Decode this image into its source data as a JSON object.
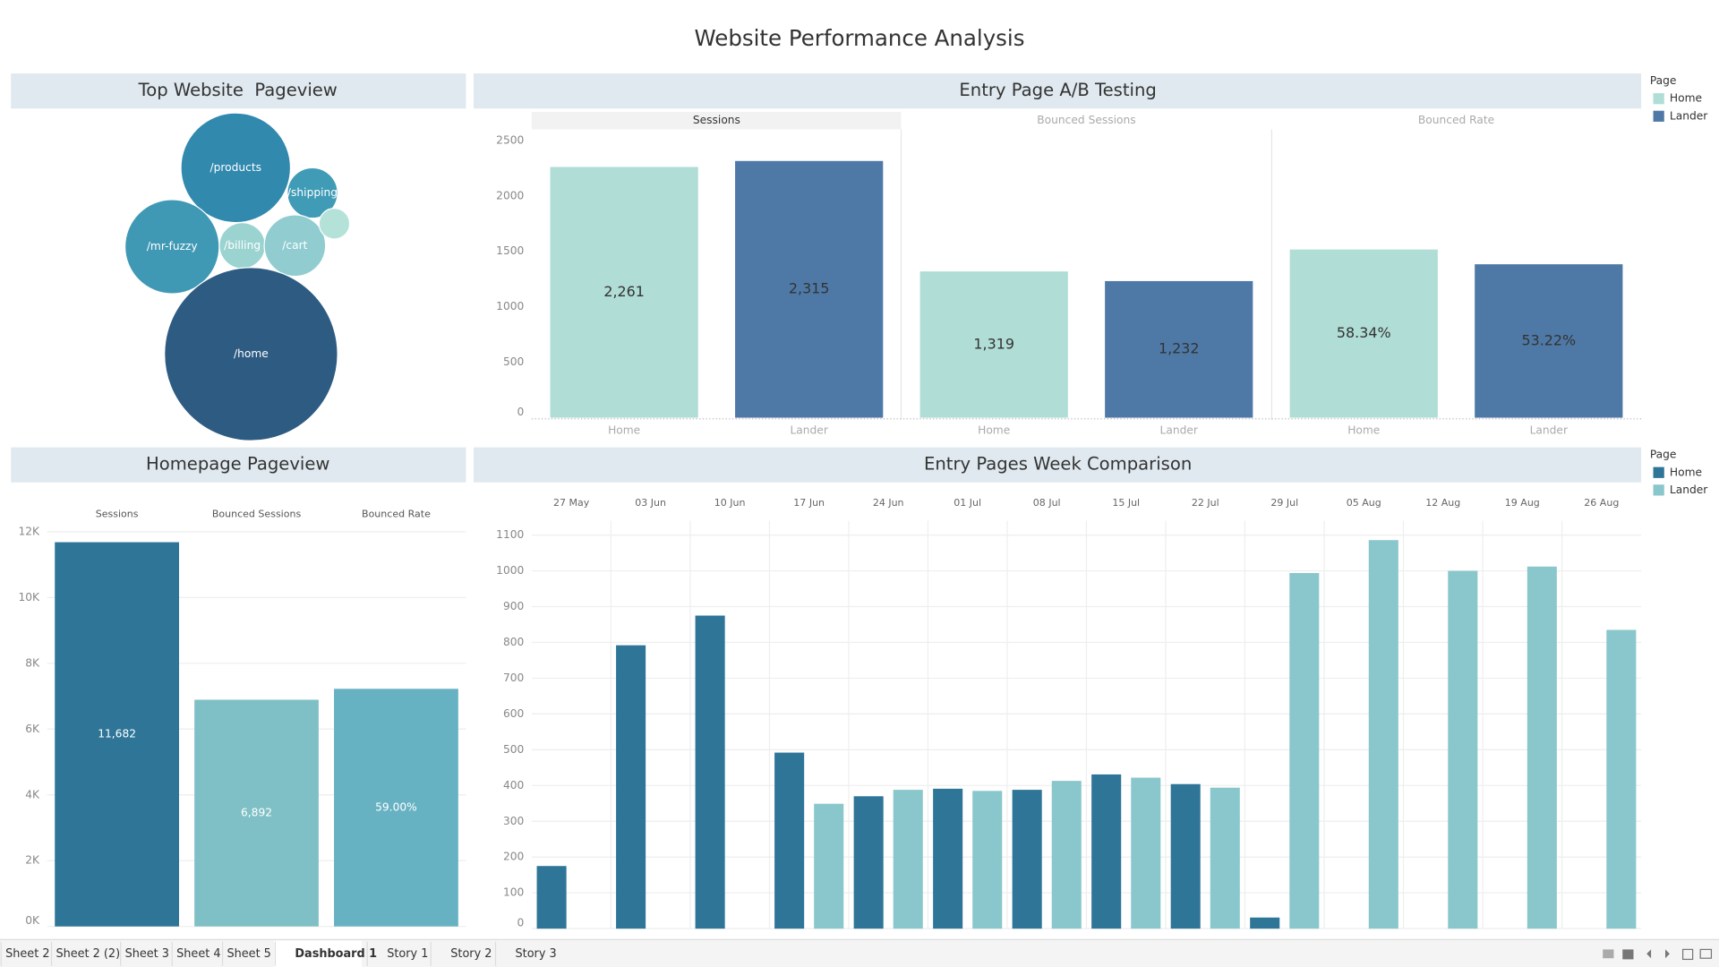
{
  "title": "Website Performance Analysis",
  "tabs": [
    "Sheet 2",
    "Sheet 2 (2)",
    "Sheet 3",
    "Sheet 4",
    "Sheet 5",
    "Dashboard 1",
    "Story 1",
    "Story 2",
    "Story 3"
  ],
  "active_tab": 5,
  "chart_data": [
    {
      "type": "bubble",
      "title": "Top Website  Pageview",
      "categories": [
        "/products",
        "/shipping",
        "/mr-fuzzy",
        "/billing",
        "/cart",
        null,
        "/home"
      ],
      "values": [
        4680,
        990,
        3461,
        825,
        1468,
        367,
        11682
      ],
      "colors": [
        "#3189ae",
        "#3f9bb6",
        "#4099b4",
        "#9ad3d0",
        "#90ccd0",
        "#b5e2d8",
        "#2d5b82"
      ]
    },
    {
      "type": "bar",
      "title": "Entry Page A/B Testing",
      "categories": [
        "Home",
        "Lander"
      ],
      "colors": [
        "#b0ddd6",
        "#4e79a7"
      ],
      "legend_title": "Page",
      "ylim": [
        0,
        2600
      ],
      "yticks": [
        0,
        500,
        1000,
        1500,
        2000,
        2500
      ],
      "y2lim": [
        0,
        100
      ],
      "panels": [
        {
          "name": "Sessions",
          "values": [
            2261,
            2315
          ],
          "value_labels": [
            "2,261",
            "2,315"
          ]
        },
        {
          "name": "Bounced Sessions",
          "values": [
            1319,
            1232
          ],
          "value_labels": [
            "1,319",
            "1,232"
          ]
        },
        {
          "name": "Bounced Rate",
          "axis": "y2",
          "values": [
            58.34,
            53.22
          ],
          "value_labels": [
            "58.34%",
            "53.22%"
          ]
        }
      ]
    },
    {
      "type": "bar",
      "title": "Homepage Pageview",
      "categories": [
        "Sessions",
        "Bounced Sessions",
        "Bounced Rate"
      ],
      "values": [
        11682,
        6892,
        59
      ],
      "value_labels": [
        "11,682",
        "6,892",
        "59.00%"
      ],
      "axes": [
        "y",
        "y",
        "y2"
      ],
      "colors": [
        "#2e7598",
        "#7fc0c6",
        "#67b2c2"
      ],
      "ylim": [
        0,
        12000
      ],
      "y2lim": [
        0,
        98
      ],
      "grid": true,
      "yticks": [
        {
          "value": 0,
          "label": "0K"
        },
        {
          "value": 2000,
          "label": "2K"
        },
        {
          "value": 4000,
          "label": "4K"
        },
        {
          "value": 6000,
          "label": "6K"
        },
        {
          "value": 8000,
          "label": "8K"
        },
        {
          "value": 10000,
          "label": "10K"
        },
        {
          "value": 12000,
          "label": "12K"
        }
      ]
    },
    {
      "type": "bar",
      "title": "Entry Pages Week Comparison",
      "legend_title": "Page",
      "x": [
        "27 May",
        "03 Jun",
        "10 Jun",
        "17 Jun",
        "24 Jun",
        "01 Jul",
        "08 Jul",
        "15 Jul",
        "22 Jul",
        "29 Jul",
        "05 Aug",
        "12 Aug",
        "19 Aug",
        "26 Aug"
      ],
      "series": [
        {
          "name": "Home",
          "color": "#2e7598",
          "values": [
            175,
            792,
            875,
            492,
            370,
            391,
            388,
            431,
            404,
            31,
            null,
            null,
            null,
            null
          ]
        },
        {
          "name": "Lander",
          "color": "#89c7cc",
          "values": [
            null,
            null,
            null,
            349,
            388,
            385,
            413,
            422,
            394,
            994,
            1086,
            1000,
            1012,
            835
          ]
        }
      ],
      "ylim": [
        0,
        1140
      ],
      "yticks": [
        0,
        100,
        200,
        300,
        400,
        500,
        600,
        700,
        800,
        900,
        1000,
        1100
      ],
      "grid": true
    }
  ]
}
